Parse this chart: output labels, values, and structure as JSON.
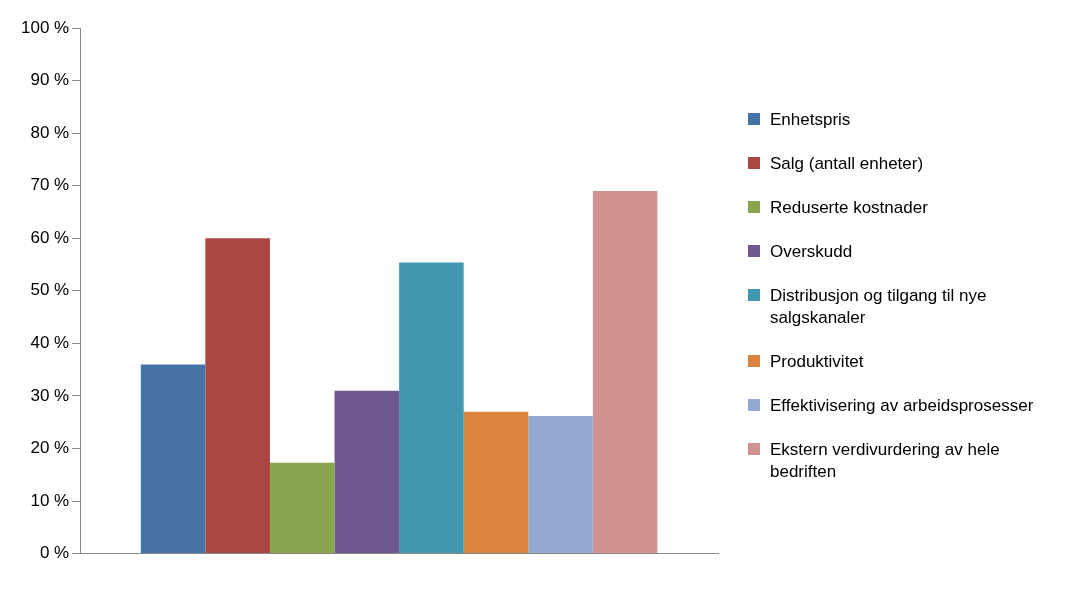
{
  "chart_data": {
    "type": "bar",
    "categories": [
      null
    ],
    "series": [
      {
        "name": "Enhetspris",
        "color": "#4572a7",
        "values": [
          36
        ]
      },
      {
        "name": "Salg (antall enheter)",
        "color": "#aa4643",
        "values": [
          60
        ]
      },
      {
        "name": "Reduserte kostnader",
        "color": "#89a54e",
        "values": [
          17.3
        ]
      },
      {
        "name": "Overskudd",
        "color": "#71588f",
        "values": [
          31
        ]
      },
      {
        "name": "Distribusjon og tilgang til nye salgskanaler",
        "color": "#4198af",
        "values": [
          55.4
        ]
      },
      {
        "name": "Produktivitet",
        "color": "#db843d",
        "values": [
          27
        ]
      },
      {
        "name": "Effektivisering av arbeidsprosesser",
        "color": "#93a9cf",
        "values": [
          26.2
        ]
      },
      {
        "name": "Ekstern verdivurdering av hele bedriften",
        "color": "#d19392",
        "values": [
          69
        ]
      }
    ],
    "ylim": [
      0,
      100
    ],
    "yticks": [
      {
        "value": 0,
        "label": "0 %"
      },
      {
        "value": 10,
        "label": "10 %"
      },
      {
        "value": 20,
        "label": "20 %"
      },
      {
        "value": 30,
        "label": "30 %"
      },
      {
        "value": 40,
        "label": "40 %"
      },
      {
        "value": 50,
        "label": "50 %"
      },
      {
        "value": 60,
        "label": "60 %"
      },
      {
        "value": 70,
        "label": "70 %"
      },
      {
        "value": 80,
        "label": "80 %"
      },
      {
        "value": 90,
        "label": "90 %"
      },
      {
        "value": 100,
        "label": "100 %"
      }
    ],
    "grid": false,
    "legend": "right"
  }
}
